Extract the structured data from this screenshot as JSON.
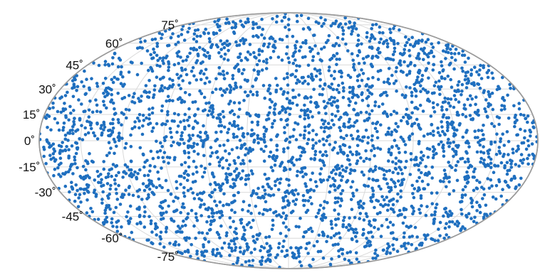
{
  "chart_data": {
    "type": "scatter",
    "projection": "mollweide",
    "title": "",
    "xlabel": "",
    "ylabel": "",
    "grid": true,
    "legend": "none",
    "xlim": [
      -180,
      180
    ],
    "ylim": [
      -90,
      90
    ],
    "tick_labels": {
      "lat": [
        "75˚",
        "60˚",
        "45˚",
        "30˚",
        "15˚",
        "0˚",
        "-15˚",
        "-30˚",
        "-45˚",
        "-60˚",
        "-75˚"
      ]
    },
    "lat_ticks": [
      75,
      60,
      45,
      30,
      15,
      0,
      -15,
      -30,
      -45,
      -60,
      -75
    ],
    "lon_gridlines": [
      -150,
      -120,
      -90,
      -60,
      -30,
      0,
      30,
      60,
      90,
      120,
      150
    ],
    "marker_color": "#1f6fbf",
    "series": [
      {
        "distribution": "uniform on sphere",
        "approx_point_count": 3200
      }
    ]
  }
}
